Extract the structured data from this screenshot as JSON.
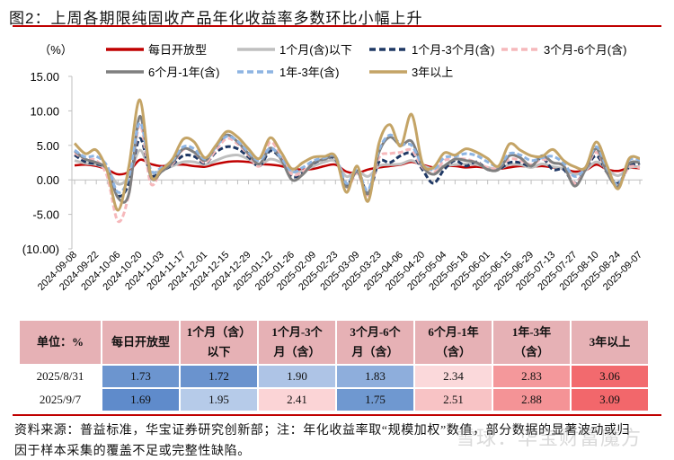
{
  "title": "图2：上周各期限纯固收产品年化收益率多数环比小幅上升",
  "chart_data": {
    "type": "line",
    "title": "图2：上周各期限纯固收产品年化收益率多数环比小幅上升",
    "ylabel": "（%）",
    "ylim": [
      -10,
      15
    ],
    "yticks": [
      15,
      10,
      5,
      0,
      -5,
      -10
    ],
    "ytick_labels": [
      "15.00",
      "10.00",
      "5.00",
      "0.00",
      "-5.00",
      "(10.00)"
    ],
    "grid": false,
    "legend": "top",
    "x": [
      "2024-09-08",
      "2024-09-15",
      "2024-09-22",
      "2024-09-29",
      "2024-10-06",
      "2024-10-13",
      "2024-10-20",
      "2024-10-27",
      "2024-11-03",
      "2024-11-10",
      "2024-11-17",
      "2024-11-24",
      "2024-12-01",
      "2024-12-08",
      "2024-12-15",
      "2024-12-22",
      "2024-12-29",
      "2025-01-05",
      "2025-01-12",
      "2025-01-19",
      "2025-01-26",
      "2025-02-02",
      "2025-02-09",
      "2025-02-16",
      "2025-02-23",
      "2025-03-02",
      "2025-03-09",
      "2025-03-16",
      "2025-03-23",
      "2025-03-30",
      "2025-04-06",
      "2025-04-13",
      "2025-04-20",
      "2025-04-27",
      "2025-05-04",
      "2025-05-11",
      "2025-05-18",
      "2025-05-25",
      "2025-06-01",
      "2025-06-08",
      "2025-06-15",
      "2025-06-22",
      "2025-06-29",
      "2025-07-06",
      "2025-07-13",
      "2025-07-20",
      "2025-07-27",
      "2025-08-03",
      "2025-08-10",
      "2025-08-17",
      "2025-08-24",
      "2025-08-31",
      "2025-09-07"
    ],
    "xtick_labels": [
      "2024-09-08",
      "2024-09-22",
      "2024-10-06",
      "2024-10-20",
      "2024-11-03",
      "2024-11-17",
      "2024-12-01",
      "2024-12-15",
      "2024-12-29",
      "2025-01-12",
      "2025-01-26",
      "2025-02-09",
      "2025-02-23",
      "2025-03-09",
      "2025-03-23",
      "2025-04-06",
      "2025-04-20",
      "2025-05-04",
      "2025-05-18",
      "2025-06-01",
      "2025-06-15",
      "2025-06-29",
      "2025-07-13",
      "2025-07-27",
      "2025-08-10",
      "2025-08-24",
      "2025-09-07"
    ],
    "series": [
      {
        "name": "每日开放型",
        "color": "#c00000",
        "dash": false,
        "values": [
          2.1,
          2.2,
          2.0,
          1.5,
          0.8,
          1.2,
          2.9,
          2.3,
          2.0,
          2.2,
          2.2,
          2.0,
          1.9,
          2.3,
          2.6,
          2.7,
          2.6,
          2.3,
          2.2,
          2.0,
          1.6,
          1.5,
          1.6,
          2.0,
          2.2,
          1.2,
          1.0,
          1.5,
          1.8,
          2.0,
          2.2,
          2.6,
          2.2,
          1.8,
          2.0,
          2.0,
          1.8,
          1.9,
          1.7,
          1.6,
          1.8,
          2.0,
          1.9,
          2.0,
          1.8,
          1.6,
          1.2,
          1.4,
          2.2,
          1.5,
          1.3,
          1.73,
          1.69
        ]
      },
      {
        "name": "1个月(含)以下",
        "color": "#bfbfbf",
        "dash": false,
        "values": [
          2.8,
          2.4,
          2.2,
          1.5,
          -0.6,
          0.5,
          4.3,
          1.2,
          1.4,
          2.0,
          2.6,
          2.6,
          2.2,
          2.8,
          3.4,
          3.6,
          3.0,
          2.2,
          3.0,
          2.5,
          1.2,
          1.3,
          2.0,
          2.6,
          2.7,
          0.5,
          1.3,
          0.5,
          2.0,
          2.2,
          2.3,
          2.8,
          2.1,
          1.6,
          2.0,
          2.2,
          2.3,
          2.2,
          1.8,
          1.6,
          2.2,
          2.2,
          1.8,
          2.3,
          1.9,
          1.6,
          0.8,
          1.4,
          2.6,
          1.5,
          0.6,
          1.72,
          1.95
        ]
      },
      {
        "name": "1个月-3个月(含)",
        "color": "#1f3864",
        "dash": true,
        "values": [
          3.6,
          2.6,
          2.3,
          1.5,
          -2.3,
          -0.5,
          6.0,
          0.8,
          1.3,
          2.2,
          3.5,
          3.4,
          2.4,
          4.0,
          4.8,
          4.5,
          3.3,
          2.0,
          4.2,
          3.0,
          0.5,
          1.0,
          2.4,
          3.0,
          3.0,
          -0.8,
          1.5,
          -2.0,
          2.6,
          2.5,
          3.5,
          3.8,
          1.5,
          -0.5,
          1.5,
          2.8,
          2.0,
          2.6,
          1.5,
          1.5,
          2.5,
          2.5,
          2.0,
          3.2,
          1.5,
          1.5,
          -0.5,
          1.5,
          3.5,
          1.0,
          -0.5,
          1.9,
          2.41
        ]
      },
      {
        "name": "3个月-6个月(含)",
        "color": "#f6b8bb",
        "dash": true,
        "values": [
          3.9,
          3.0,
          2.8,
          0.5,
          -6.0,
          -2.0,
          8.0,
          -0.5,
          1.5,
          2.3,
          4.4,
          4.0,
          2.5,
          4.3,
          6.0,
          5.2,
          3.6,
          2.0,
          5.5,
          3.3,
          0.8,
          1.2,
          2.6,
          3.0,
          3.2,
          -1.3,
          1.0,
          -2.2,
          3.2,
          3.8,
          4.0,
          4.3,
          1.8,
          1.0,
          2.8,
          3.0,
          3.0,
          2.5,
          1.8,
          1.7,
          3.0,
          2.8,
          2.2,
          3.0,
          2.5,
          2.0,
          -0.5,
          1.5,
          4.0,
          1.0,
          -0.8,
          1.83,
          1.75
        ]
      },
      {
        "name": "6个月-1年(含)",
        "color": "#7f7f7f",
        "dash": false,
        "values": [
          4.2,
          3.0,
          2.5,
          1.5,
          -2.6,
          -2.0,
          9.2,
          0.5,
          1.2,
          2.5,
          4.5,
          4.0,
          2.8,
          4.8,
          6.5,
          5.5,
          3.8,
          2.3,
          4.6,
          3.0,
          0.0,
          0.8,
          2.5,
          3.0,
          3.2,
          -1.0,
          1.2,
          -2.0,
          4.0,
          6.2,
          5.0,
          5.6,
          2.0,
          0.8,
          2.0,
          3.0,
          2.8,
          2.5,
          1.5,
          1.5,
          3.5,
          3.2,
          2.0,
          3.5,
          2.5,
          2.0,
          -0.9,
          1.5,
          4.5,
          1.0,
          -0.9,
          2.34,
          2.51
        ]
      },
      {
        "name": "1年-3年(含)",
        "color": "#8db4e2",
        "dash": true,
        "values": [
          4.3,
          3.3,
          3.4,
          2.0,
          -1.8,
          0.5,
          8.3,
          1.5,
          1.8,
          2.8,
          4.8,
          4.5,
          3.0,
          4.8,
          6.3,
          5.6,
          4.0,
          2.8,
          4.6,
          3.2,
          1.2,
          1.8,
          2.8,
          3.2,
          3.4,
          -0.5,
          1.5,
          -1.5,
          4.3,
          6.5,
          5.2,
          5.0,
          2.2,
          1.5,
          3.2,
          3.4,
          3.8,
          3.5,
          2.6,
          2.0,
          3.8,
          3.6,
          2.8,
          3.2,
          3.4,
          2.4,
          0.5,
          1.8,
          4.8,
          1.6,
          -0.7,
          2.83,
          2.88
        ]
      },
      {
        "name": "3年以上",
        "color": "#c4a466",
        "dash": false,
        "values": [
          5.3,
          3.8,
          4.3,
          1.3,
          -4.4,
          2.0,
          11.6,
          0.7,
          1.5,
          3.0,
          5.9,
          5.5,
          3.2,
          5.0,
          7.0,
          6.2,
          4.5,
          3.1,
          6.1,
          4.0,
          1.6,
          2.5,
          3.3,
          3.4,
          3.4,
          -1.8,
          2.0,
          -3.1,
          5.3,
          8.0,
          4.9,
          9.5,
          2.4,
          1.8,
          3.9,
          3.6,
          4.5,
          4.0,
          3.1,
          2.0,
          5.2,
          4.3,
          3.5,
          3.4,
          4.4,
          2.8,
          1.9,
          1.8,
          5.5,
          2.0,
          -1.3,
          3.06,
          3.09
        ]
      }
    ]
  },
  "table": {
    "headers": [
      "单位：%",
      [
        "每日开放型"
      ],
      [
        "1个月（含）",
        "以下"
      ],
      [
        "1个月-3个",
        "月（含）"
      ],
      [
        "3个月-6个",
        "月（含）"
      ],
      [
        "6个月-1年",
        "（含）"
      ],
      [
        "1年-3年",
        "（含）"
      ],
      [
        "3年以上"
      ]
    ],
    "rows": [
      {
        "label": "2025/8/31",
        "values": [
          "1.73",
          "1.72",
          "1.90",
          "1.83",
          "2.34",
          "2.83",
          "3.06"
        ],
        "colors": [
          "#6c95cf",
          "#6a93ce",
          "#aec4e6",
          "#8eaedc",
          "#fbd9db",
          "#f4989b",
          "#f26a6e"
        ]
      },
      {
        "label": "2025/9/7",
        "values": [
          "1.69",
          "1.95",
          "2.41",
          "1.75",
          "2.51",
          "2.88",
          "3.09"
        ],
        "colors": [
          "#5f8bcb",
          "#b6cbe9",
          "#fbd4d6",
          "#6f98d0",
          "#f8c3c5",
          "#f49396",
          "#f2676b"
        ]
      }
    ]
  },
  "footer": [
    "资料来源：普益标准，华宝证券研究创新部；注：年化收益率取“规模加权”数值，部分数据的显著波动或归",
    "因于样本采集的覆盖不足或完整性缺陷。"
  ],
  "watermark": "雪球：华宝财富魔方"
}
